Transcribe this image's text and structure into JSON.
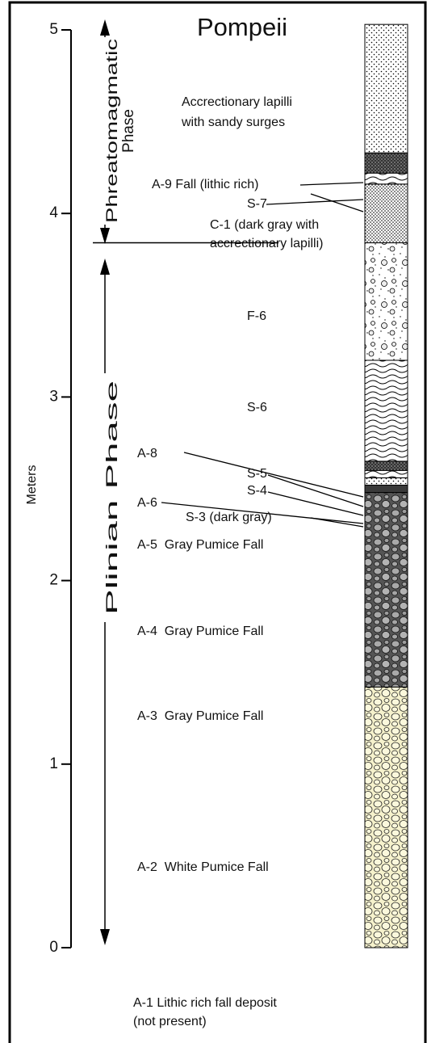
{
  "title": "Pompeii",
  "axis": {
    "label": "Meters",
    "ylim": [
      0,
      5
    ],
    "yticks": [
      0,
      1,
      2,
      3,
      4,
      5
    ]
  },
  "phases": [
    [
      "Phreatomagmatic",
      "Phase"
    ],
    [
      "Plinian Phase"
    ]
  ],
  "phase_boundary": 3.84,
  "labels": [
    "Accrectionary lapilli",
    "with sandy surges",
    "A-9 Fall (lithic rich)",
    "S-7",
    "C-1 (dark gray with",
    "accrectionary lapilli)",
    "F-6",
    "S-6",
    "A-8",
    "S-5",
    "S-4",
    "A-6",
    "S-3 (dark gray)",
    "A-5  Gray Pumice Fall",
    "A-4  Gray Pumice Fall",
    "A-3  Gray Pumice Fall",
    "A-2  White Pumice Fall",
    "A-1 Lithic rich fall deposit",
    "(not present)"
  ],
  "layers": [
    {
      "bottom": 0,
      "top": 1.42
    },
    {
      "bottom": 1.42,
      "top": 2.48
    },
    {
      "bottom": 2.48,
      "top": 2.52
    },
    {
      "bottom": 2.52,
      "top": 2.56
    },
    {
      "bottom": 2.56,
      "top": 2.6
    },
    {
      "bottom": 2.6,
      "top": 2.65
    },
    {
      "bottom": 2.65,
      "top": 3.2
    },
    {
      "bottom": 3.2,
      "top": 3.84
    },
    {
      "bottom": 3.84,
      "top": 4.16
    },
    {
      "bottom": 4.16,
      "top": 4.22
    },
    {
      "bottom": 4.22,
      "top": 4.33
    },
    {
      "bottom": 4.33,
      "top": 5.03
    }
  ]
}
